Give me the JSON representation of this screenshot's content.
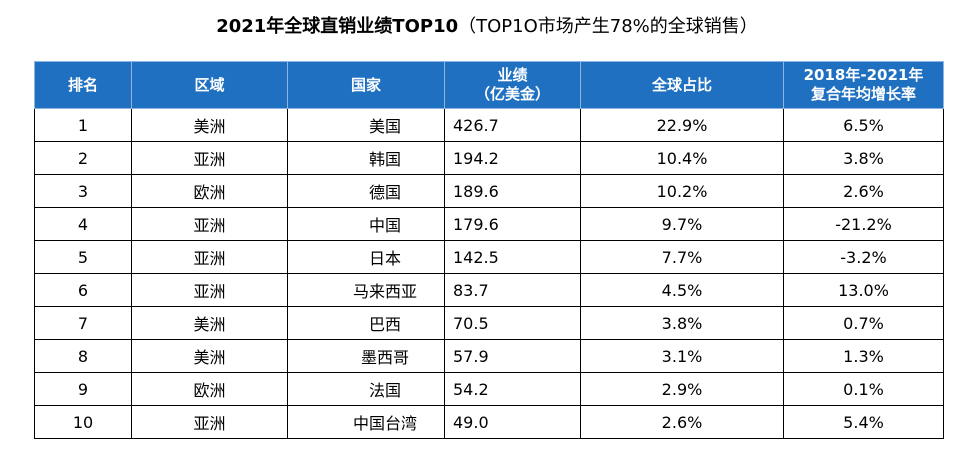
{
  "title_main": "2021年全球直销业绩TOP10",
  "title_sub": "（TOP1O市场产生78%的全球销售）",
  "chart_data": {
    "type": "table",
    "title": "2021年全球直销业绩TOP10（TOP1O市场产生78%的全球销售）",
    "headers": {
      "rank": "排名",
      "region": "区域",
      "country": "国家",
      "sales_line1": "业绩",
      "sales_line2": "（亿美金）",
      "share": "全球占比",
      "cagr_line1": "2018年-2021年",
      "cagr_line2": "复合年均增长率"
    },
    "rows": [
      {
        "rank": "1",
        "region": "美洲",
        "country": "美国",
        "sales": "426.7",
        "share": "22.9%",
        "cagr": "6.5%"
      },
      {
        "rank": "2",
        "region": "亚洲",
        "country": "韩国",
        "sales": "194.2",
        "share": "10.4%",
        "cagr": "3.8%"
      },
      {
        "rank": "3",
        "region": "欧洲",
        "country": "德国",
        "sales": "189.6",
        "share": "10.2%",
        "cagr": "2.6%"
      },
      {
        "rank": "4",
        "region": "亚洲",
        "country": "中国",
        "sales": "179.6",
        "share": "9.7%",
        "cagr": "-21.2%"
      },
      {
        "rank": "5",
        "region": "亚洲",
        "country": "日本",
        "sales": "142.5",
        "share": "7.7%",
        "cagr": "-3.2%"
      },
      {
        "rank": "6",
        "region": "亚洲",
        "country": "马来西亚",
        "sales": "83.7",
        "share": "4.5%",
        "cagr": "13.0%"
      },
      {
        "rank": "7",
        "region": "美洲",
        "country": "巴西",
        "sales": "70.5",
        "share": "3.8%",
        "cagr": "0.7%"
      },
      {
        "rank": "8",
        "region": "美洲",
        "country": "墨西哥",
        "sales": "57.9",
        "share": "3.1%",
        "cagr": "1.3%"
      },
      {
        "rank": "9",
        "region": "欧洲",
        "country": "法国",
        "sales": "54.2",
        "share": "2.9%",
        "cagr": "0.1%"
      },
      {
        "rank": "10",
        "region": "亚洲",
        "country": "中国台湾",
        "sales": "49.0",
        "share": "2.6%",
        "cagr": "5.4%"
      }
    ]
  },
  "colors": {
    "header_bg": "#1f70c1",
    "header_text": "#ffffff"
  }
}
